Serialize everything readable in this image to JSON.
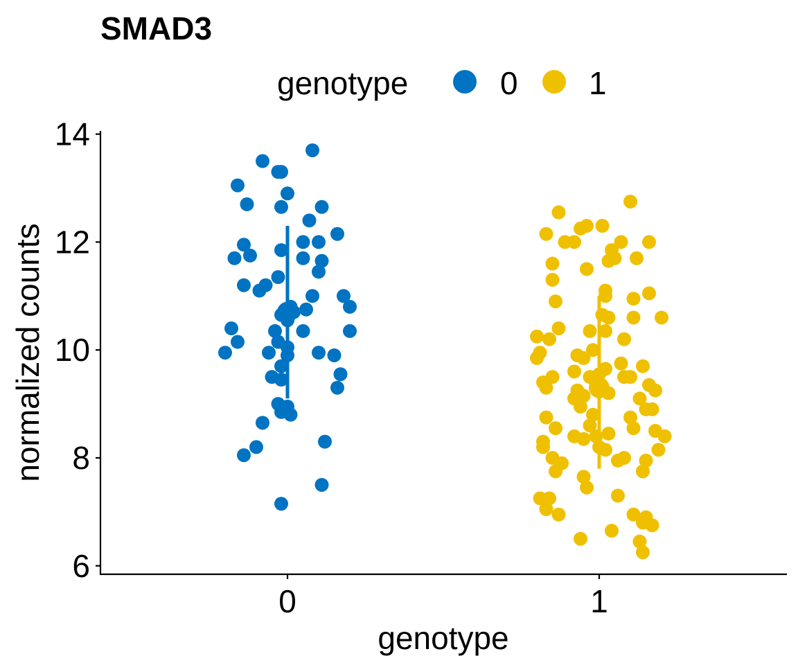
{
  "chart_data": {
    "type": "scatter",
    "title": "SMAD3",
    "xlabel": "genotype",
    "ylabel": "normalized counts",
    "categories": [
      "0",
      "1"
    ],
    "yticks": [
      "6",
      "8",
      "10",
      "12",
      "14"
    ],
    "ylim": [
      5.9,
      14.1
    ],
    "legend": {
      "title": "genotype",
      "placement": "top",
      "entries": [
        "0",
        "1"
      ]
    },
    "colors": {
      "0": "#0073C2",
      "1": "#EFC000"
    },
    "grid": false,
    "series": [
      {
        "name": "0",
        "summary": {
          "mean": 10.7,
          "ymin": 9.1,
          "ymax": 12.3
        },
        "points": [
          {
            "x": 0.08,
            "y": 13.7
          },
          {
            "x": -0.08,
            "y": 13.5
          },
          {
            "x": -0.03,
            "y": 13.3
          },
          {
            "x": -0.02,
            "y": 13.3
          },
          {
            "x": -0.16,
            "y": 13.05
          },
          {
            "x": 0.0,
            "y": 12.9
          },
          {
            "x": -0.13,
            "y": 12.7
          },
          {
            "x": -0.02,
            "y": 12.65
          },
          {
            "x": 0.11,
            "y": 12.65
          },
          {
            "x": 0.07,
            "y": 12.4
          },
          {
            "x": 0.16,
            "y": 12.15
          },
          {
            "x": 0.05,
            "y": 12.0
          },
          {
            "x": 0.1,
            "y": 12.0
          },
          {
            "x": -0.14,
            "y": 11.95
          },
          {
            "x": -0.02,
            "y": 11.85
          },
          {
            "x": -0.12,
            "y": 11.75
          },
          {
            "x": -0.17,
            "y": 11.7
          },
          {
            "x": 0.05,
            "y": 11.7
          },
          {
            "x": 0.11,
            "y": 11.65
          },
          {
            "x": 0.1,
            "y": 11.45
          },
          {
            "x": -0.03,
            "y": 11.35
          },
          {
            "x": -0.07,
            "y": 11.2
          },
          {
            "x": -0.14,
            "y": 11.2
          },
          {
            "x": -0.09,
            "y": 11.1
          },
          {
            "x": 0.08,
            "y": 11.0
          },
          {
            "x": 0.18,
            "y": 11.0
          },
          {
            "x": 0.2,
            "y": 10.8
          },
          {
            "x": 0.06,
            "y": 10.75
          },
          {
            "x": 0.01,
            "y": 10.8
          },
          {
            "x": -0.02,
            "y": 10.65
          },
          {
            "x": 0.0,
            "y": 10.55
          },
          {
            "x": 0.02,
            "y": 10.7
          },
          {
            "x": -0.18,
            "y": 10.4
          },
          {
            "x": -0.04,
            "y": 10.35
          },
          {
            "x": 0.05,
            "y": 10.35
          },
          {
            "x": 0.2,
            "y": 10.35
          },
          {
            "x": -0.16,
            "y": 10.15
          },
          {
            "x": -0.03,
            "y": 10.15
          },
          {
            "x": 0.0,
            "y": 10.05
          },
          {
            "x": -0.2,
            "y": 9.95
          },
          {
            "x": -0.06,
            "y": 9.95
          },
          {
            "x": 0.1,
            "y": 9.95
          },
          {
            "x": 0.0,
            "y": 9.9
          },
          {
            "x": 0.15,
            "y": 9.9
          },
          {
            "x": -0.02,
            "y": 9.7
          },
          {
            "x": 0.17,
            "y": 9.55
          },
          {
            "x": -0.05,
            "y": 9.5
          },
          {
            "x": -0.02,
            "y": 9.45
          },
          {
            "x": 0.16,
            "y": 9.3
          },
          {
            "x": -0.03,
            "y": 9.0
          },
          {
            "x": 0.0,
            "y": 8.95
          },
          {
            "x": -0.02,
            "y": 8.85
          },
          {
            "x": 0.01,
            "y": 8.8
          },
          {
            "x": -0.08,
            "y": 8.65
          },
          {
            "x": 0.12,
            "y": 8.3
          },
          {
            "x": -0.1,
            "y": 8.2
          },
          {
            "x": -0.14,
            "y": 8.05
          },
          {
            "x": 0.11,
            "y": 7.5
          },
          {
            "x": -0.02,
            "y": 7.15
          }
        ]
      },
      {
        "name": "1",
        "summary": {
          "mean": 9.3,
          "ymin": 7.8,
          "ymax": 11.0
        },
        "points": [
          {
            "x": 1.1,
            "y": 12.75
          },
          {
            "x": 0.87,
            "y": 12.55
          },
          {
            "x": 0.94,
            "y": 12.25
          },
          {
            "x": 0.96,
            "y": 12.3
          },
          {
            "x": 1.01,
            "y": 12.3
          },
          {
            "x": 0.83,
            "y": 12.15
          },
          {
            "x": 0.92,
            "y": 12.0
          },
          {
            "x": 0.89,
            "y": 12.0
          },
          {
            "x": 1.07,
            "y": 12.0
          },
          {
            "x": 1.16,
            "y": 12.0
          },
          {
            "x": 1.04,
            "y": 11.85
          },
          {
            "x": 1.05,
            "y": 11.7
          },
          {
            "x": 1.03,
            "y": 11.65
          },
          {
            "x": 1.12,
            "y": 11.7
          },
          {
            "x": 0.85,
            "y": 11.6
          },
          {
            "x": 0.96,
            "y": 11.5
          },
          {
            "x": 0.85,
            "y": 11.3
          },
          {
            "x": 1.02,
            "y": 11.1
          },
          {
            "x": 1.16,
            "y": 11.05
          },
          {
            "x": 1.02,
            "y": 11.0
          },
          {
            "x": 1.11,
            "y": 10.95
          },
          {
            "x": 0.86,
            "y": 10.9
          },
          {
            "x": 1.01,
            "y": 10.65
          },
          {
            "x": 1.03,
            "y": 10.6
          },
          {
            "x": 1.11,
            "y": 10.6
          },
          {
            "x": 1.2,
            "y": 10.6
          },
          {
            "x": 0.87,
            "y": 10.4
          },
          {
            "x": 0.97,
            "y": 10.35
          },
          {
            "x": 1.02,
            "y": 10.35
          },
          {
            "x": 0.8,
            "y": 10.25
          },
          {
            "x": 0.84,
            "y": 10.2
          },
          {
            "x": 1.08,
            "y": 10.2
          },
          {
            "x": 0.98,
            "y": 10.0
          },
          {
            "x": 0.81,
            "y": 9.95
          },
          {
            "x": 0.8,
            "y": 9.85
          },
          {
            "x": 0.93,
            "y": 9.9
          },
          {
            "x": 0.95,
            "y": 9.85
          },
          {
            "x": 1.07,
            "y": 9.75
          },
          {
            "x": 1.14,
            "y": 9.7
          },
          {
            "x": 1.02,
            "y": 9.65
          },
          {
            "x": 0.92,
            "y": 9.6
          },
          {
            "x": 0.97,
            "y": 9.5
          },
          {
            "x": 1.0,
            "y": 9.55
          },
          {
            "x": 0.85,
            "y": 9.5
          },
          {
            "x": 1.08,
            "y": 9.5
          },
          {
            "x": 1.1,
            "y": 9.5
          },
          {
            "x": 0.82,
            "y": 9.4
          },
          {
            "x": 0.99,
            "y": 9.35
          },
          {
            "x": 1.16,
            "y": 9.35
          },
          {
            "x": 0.83,
            "y": 9.3
          },
          {
            "x": 0.93,
            "y": 9.25
          },
          {
            "x": 1.18,
            "y": 9.25
          },
          {
            "x": 1.03,
            "y": 9.2
          },
          {
            "x": 0.95,
            "y": 9.15
          },
          {
            "x": 0.92,
            "y": 9.1
          },
          {
            "x": 1.13,
            "y": 9.1
          },
          {
            "x": 0.94,
            "y": 8.95
          },
          {
            "x": 1.15,
            "y": 8.9
          },
          {
            "x": 1.17,
            "y": 8.9
          },
          {
            "x": 0.83,
            "y": 8.75
          },
          {
            "x": 0.98,
            "y": 8.8
          },
          {
            "x": 1.1,
            "y": 8.75
          },
          {
            "x": 0.86,
            "y": 8.55
          },
          {
            "x": 0.97,
            "y": 8.6
          },
          {
            "x": 1.11,
            "y": 8.55
          },
          {
            "x": 1.18,
            "y": 8.5
          },
          {
            "x": 1.03,
            "y": 8.45
          },
          {
            "x": 0.99,
            "y": 8.4
          },
          {
            "x": 0.92,
            "y": 8.4
          },
          {
            "x": 0.95,
            "y": 8.35
          },
          {
            "x": 1.21,
            "y": 8.4
          },
          {
            "x": 0.82,
            "y": 8.3
          },
          {
            "x": 0.82,
            "y": 8.2
          },
          {
            "x": 1.0,
            "y": 8.2
          },
          {
            "x": 1.02,
            "y": 8.15
          },
          {
            "x": 1.19,
            "y": 8.15
          },
          {
            "x": 0.85,
            "y": 8.0
          },
          {
            "x": 1.08,
            "y": 8.0
          },
          {
            "x": 0.88,
            "y": 7.9
          },
          {
            "x": 1.06,
            "y": 7.95
          },
          {
            "x": 1.15,
            "y": 7.95
          },
          {
            "x": 0.86,
            "y": 7.75
          },
          {
            "x": 1.14,
            "y": 7.75
          },
          {
            "x": 0.95,
            "y": 7.65
          },
          {
            "x": 0.96,
            "y": 7.45
          },
          {
            "x": 1.06,
            "y": 7.3
          },
          {
            "x": 0.81,
            "y": 7.25
          },
          {
            "x": 0.84,
            "y": 7.25
          },
          {
            "x": 0.83,
            "y": 7.05
          },
          {
            "x": 0.87,
            "y": 6.95
          },
          {
            "x": 1.11,
            "y": 6.95
          },
          {
            "x": 1.15,
            "y": 6.9
          },
          {
            "x": 1.14,
            "y": 6.8
          },
          {
            "x": 1.17,
            "y": 6.75
          },
          {
            "x": 1.04,
            "y": 6.65
          },
          {
            "x": 0.94,
            "y": 6.5
          },
          {
            "x": 1.13,
            "y": 6.45
          },
          {
            "x": 1.14,
            "y": 6.25
          }
        ]
      }
    ]
  }
}
